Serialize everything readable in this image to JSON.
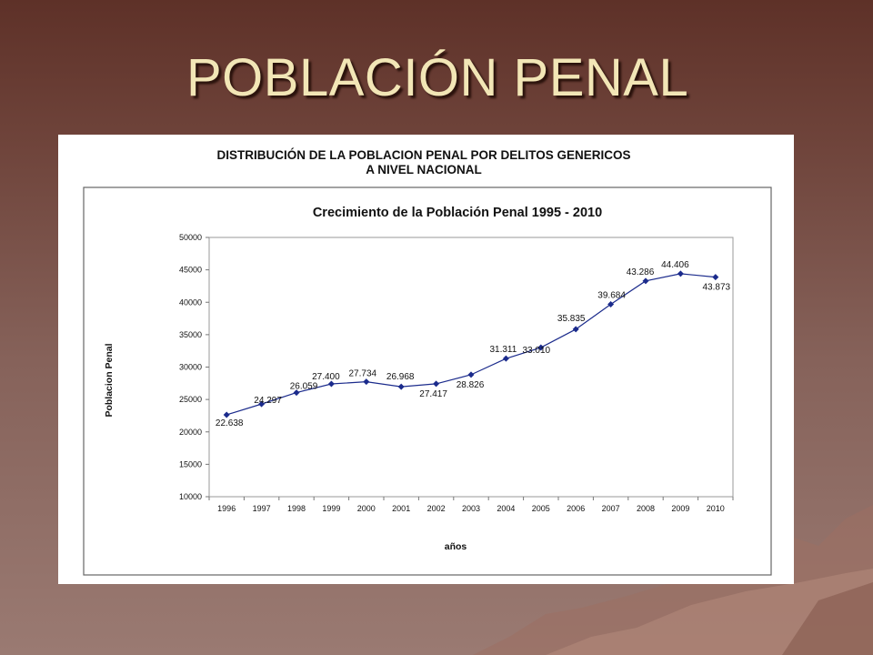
{
  "slide": {
    "title": "POBLACIÓN PENAL"
  },
  "colors": {
    "title_text": "#f2e6b6",
    "series_line": "#1b2b8c",
    "background_top": "#5e3128",
    "background_bottom": "#9a7a72"
  },
  "chart_data": {
    "type": "line",
    "header_lines": [
      "DISTRIBUCIÓN DE LA POBLACION PENAL POR DELITOS GENERICOS",
      "A NIVEL NACIONAL"
    ],
    "title": "Crecimiento de la Población Penal 1995 - 2010",
    "xlabel": "años",
    "ylabel": "Poblacion Penal",
    "ylim": [
      10000,
      50000
    ],
    "yticks": [
      10000,
      15000,
      20000,
      25000,
      30000,
      35000,
      40000,
      45000,
      50000
    ],
    "grid": false,
    "legend": "none",
    "categories": [
      "1996",
      "1997",
      "1998",
      "1999",
      "2000",
      "2001",
      "2002",
      "2003",
      "2004",
      "2005",
      "2006",
      "2007",
      "2008",
      "2009",
      "2010"
    ],
    "series": [
      {
        "values": [
          22638,
          24297,
          26059,
          27400,
          27734,
          26968,
          27417,
          28826,
          31311,
          33010,
          35835,
          39684,
          43286,
          44406,
          43873
        ],
        "data_labels": [
          "22.638",
          "24.297",
          "26.059",
          "27.400",
          "27.734",
          "26.968",
          "27.417",
          "28.826",
          "31.311",
          "33.010",
          "35.835",
          "39.684",
          "43.286",
          "44.406",
          "43.873"
        ]
      }
    ]
  }
}
